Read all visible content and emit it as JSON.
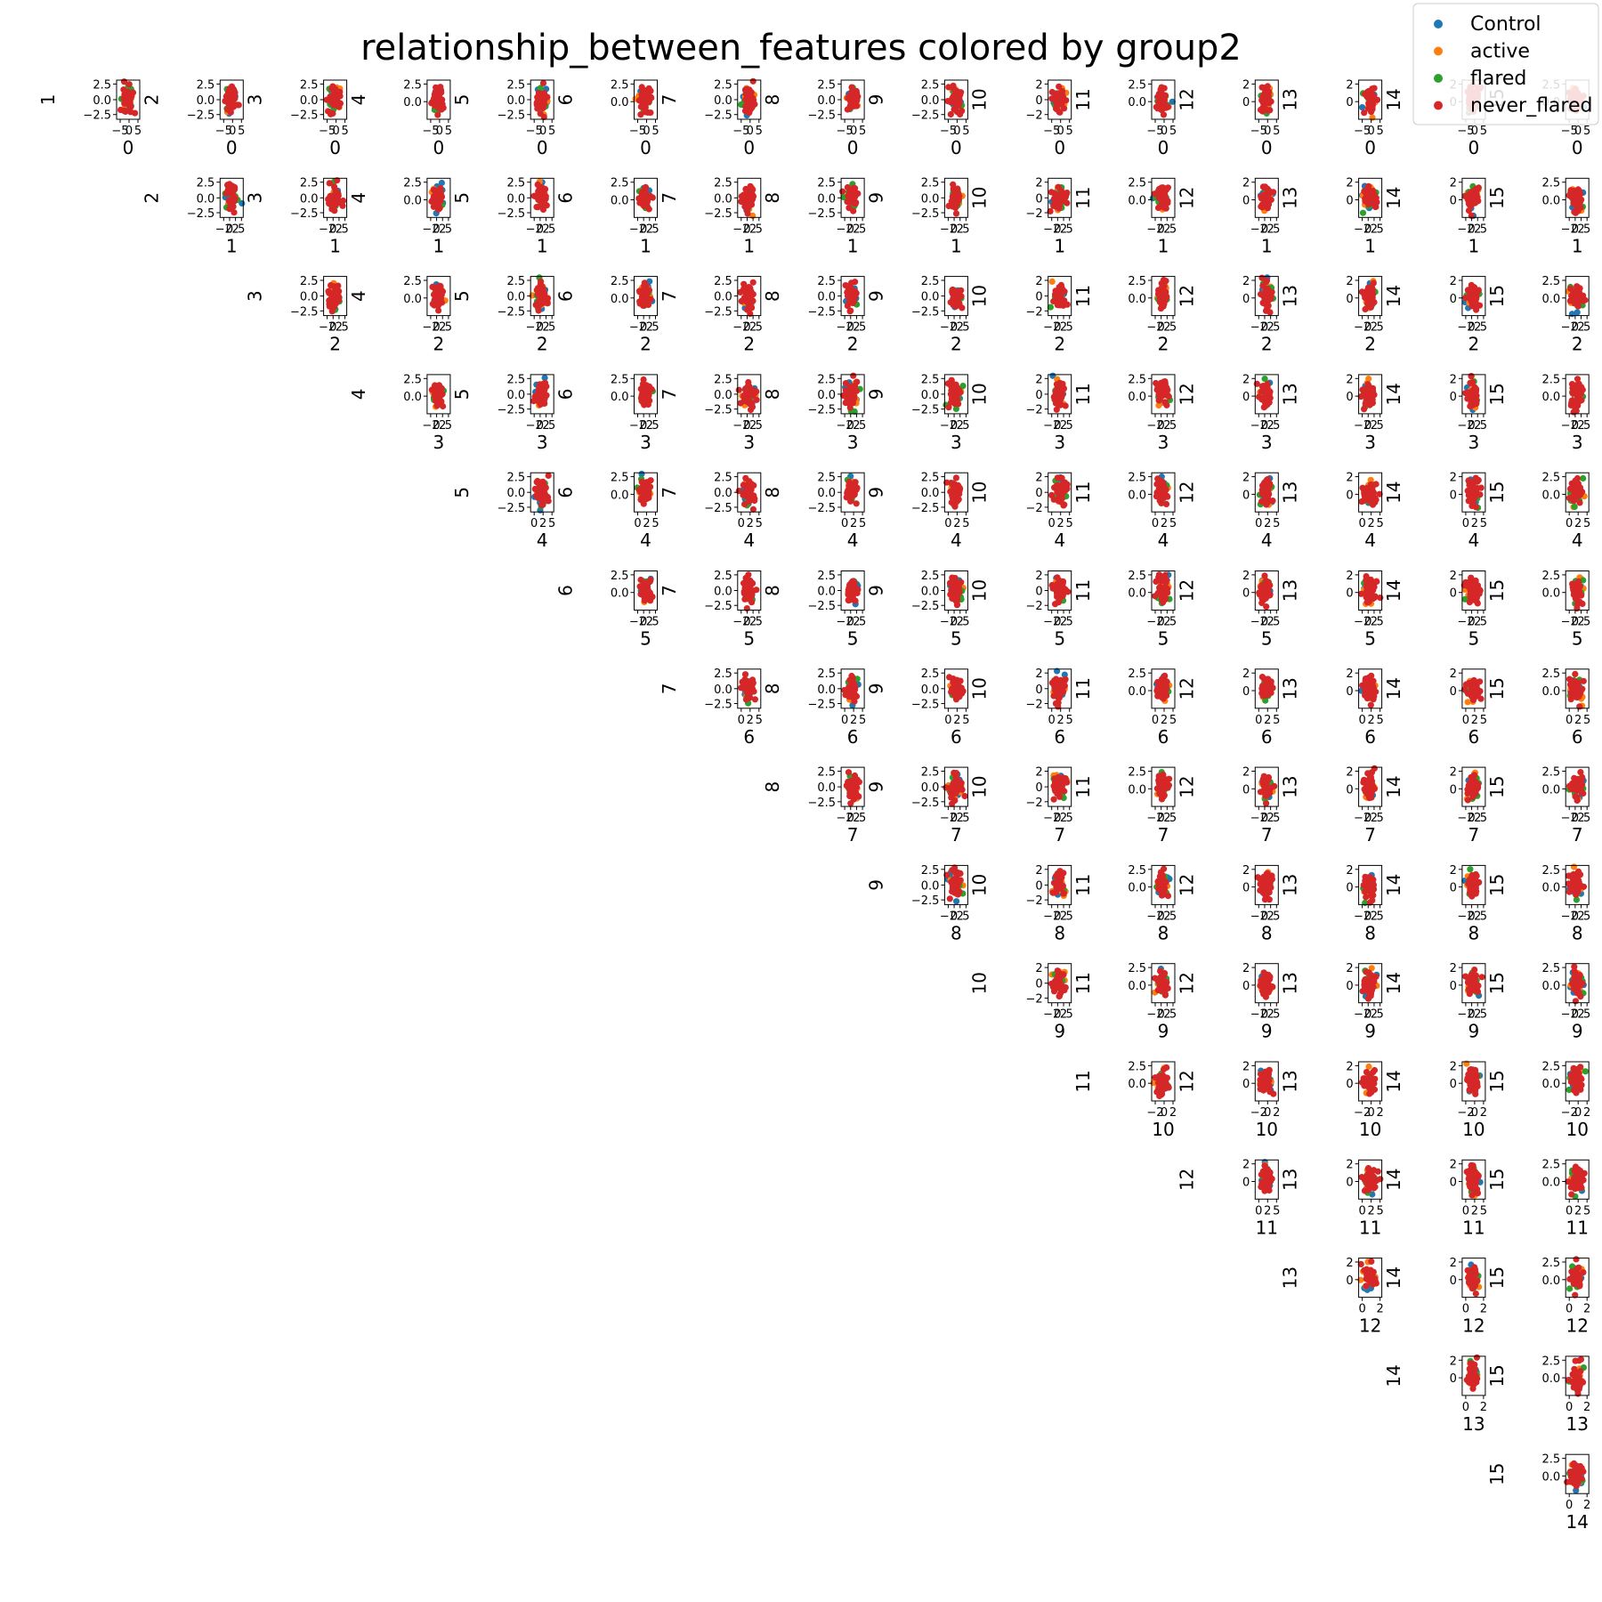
{
  "chart_data": {
    "type": "scatter",
    "title": "relationship_between_features colored by group2",
    "features": [
      "0",
      "1",
      "2",
      "3",
      "4",
      "5",
      "6",
      "7",
      "8",
      "9",
      "10",
      "11",
      "12",
      "13",
      "14",
      "15"
    ],
    "layout": "upper-triangle pair grid: column = x feature, row = y feature",
    "legend": {
      "position": "top-right",
      "entries": [
        {
          "name": "Control",
          "color": "#1f77b4"
        },
        {
          "name": "active",
          "color": "#ff7f0e"
        },
        {
          "name": "flared",
          "color": "#2ca02c"
        },
        {
          "name": "never_flared",
          "color": "#d62728"
        }
      ]
    },
    "draw_order": [
      "Control",
      "active",
      "flared",
      "never_flared"
    ],
    "dominant_visible_series": "never_flared",
    "point_cloud_extent": {
      "x": [
        -2,
        3
      ],
      "y": [
        -2.5,
        2.8
      ]
    },
    "x_tick_labels": {
      "0": [
        "−5",
        "0",
        "5"
      ],
      "1": [
        "−2",
        "0",
        "2",
        "5"
      ],
      "2": [
        "−2",
        "0",
        "2",
        "5"
      ],
      "3": [
        "−2",
        "0",
        "2",
        "5"
      ],
      "4": [
        "0",
        "2",
        "5"
      ],
      "5": [
        "−2",
        "0",
        "2",
        "5"
      ],
      "6": [
        "0",
        "2",
        "5"
      ],
      "7": [
        "−2",
        "0",
        "2",
        "5"
      ],
      "8": [
        "−2",
        "0",
        "2",
        "5"
      ],
      "9": [
        "−2",
        "0",
        "2",
        "5"
      ],
      "10": [
        "−2",
        "0",
        "2"
      ],
      "11": [
        "0",
        "2",
        "5"
      ],
      "12": [
        "0",
        "2"
      ],
      "13": [
        "0",
        "2"
      ],
      "14": [
        "0",
        "2"
      ]
    },
    "y_tick_labels": {
      "1": [
        "2.5",
        "0.0",
        "−2.5"
      ],
      "2": [
        "2.5",
        "0.0",
        "−2.5"
      ],
      "3": [
        "2.5",
        "0.0",
        "−2.5"
      ],
      "4": [
        "2.5",
        "0.0"
      ],
      "5": [
        "2.5",
        "0.0",
        "−2.5"
      ],
      "6": [
        "2.5",
        "0.0"
      ],
      "7": [
        "2.5",
        "0.0",
        "−2.5"
      ],
      "8": [
        "2.5",
        "0.0",
        "−2.5"
      ],
      "9": [
        "2.5",
        "0.0",
        "−2.5"
      ],
      "10": [
        "2",
        "0",
        "−2"
      ],
      "11": [
        "2.5",
        "0.0"
      ],
      "12": [
        "2",
        "0"
      ],
      "13": [
        "2",
        "0"
      ],
      "14": [
        "2",
        "0"
      ],
      "15": [
        "2.5",
        "0.0"
      ]
    }
  }
}
